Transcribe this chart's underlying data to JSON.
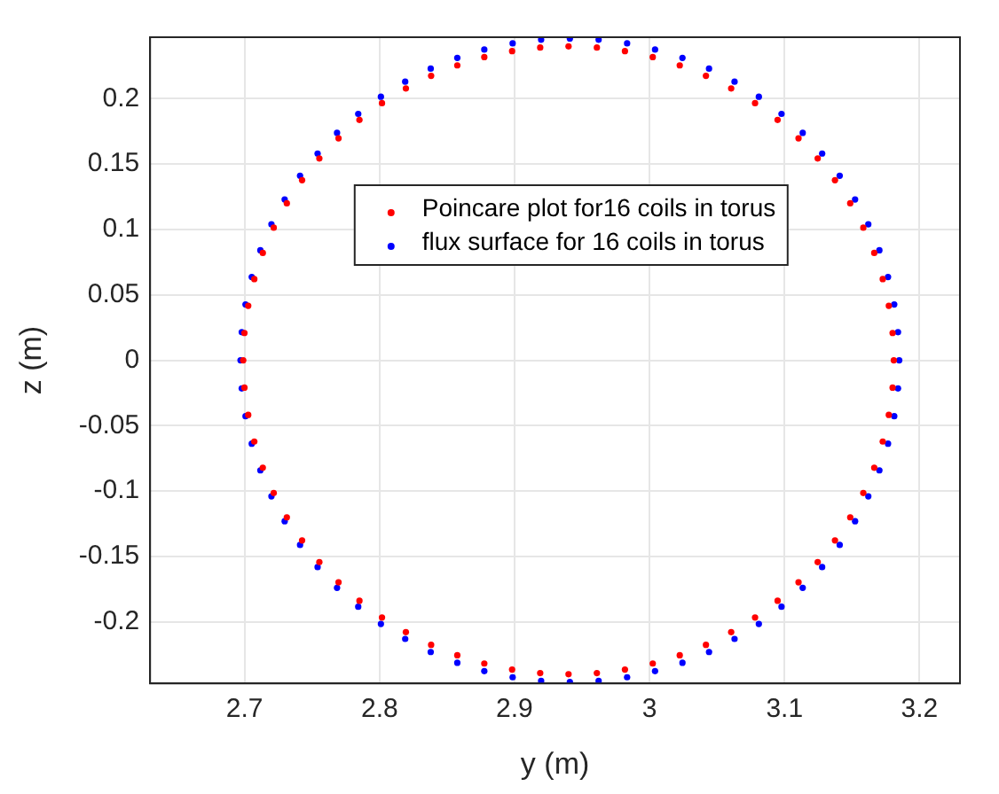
{
  "chart_data": {
    "type": "scatter",
    "xlabel": "y (m)",
    "ylabel": "z (m)",
    "xlim": [
      2.63,
      3.23
    ],
    "xticks": [
      2.7,
      2.8,
      2.9,
      3,
      3.1,
      3.2
    ],
    "ylim": [
      -0.247,
      0.247
    ],
    "yticks": [
      -0.2,
      -0.15,
      -0.1,
      -0.05,
      0,
      0.05,
      0.1,
      0.15,
      0.2
    ],
    "grid": true,
    "legend": "top",
    "series": [
      {
        "name": "Poincare plot for16 coils in torus",
        "type": "scatter",
        "marker": "circle",
        "color": "#ff0000",
        "x": [
          3.181,
          3.1801,
          3.1773,
          3.1728,
          3.1665,
          3.1584,
          3.1487,
          3.1374,
          3.1246,
          3.1104,
          3.0949,
          3.0782,
          3.0605,
          3.0418,
          3.0224,
          3.0024,
          2.9818,
          2.961,
          2.94,
          2.919,
          2.8982,
          2.8776,
          2.8576,
          2.8382,
          2.8195,
          2.8018,
          2.7851,
          2.7696,
          2.7554,
          2.7426,
          2.7313,
          2.7216,
          2.7135,
          2.7072,
          2.7027,
          2.6999,
          2.699,
          2.6999,
          2.7027,
          2.7072,
          2.7135,
          2.7216,
          2.7313,
          2.7426,
          2.7554,
          2.7696,
          2.7851,
          2.8018,
          2.8195,
          2.8382,
          2.8576,
          2.8776,
          2.8982,
          2.919,
          2.94,
          2.961,
          2.9818,
          3.0024,
          3.0224,
          3.0418,
          3.0605,
          3.0782,
          3.0949,
          3.1104,
          3.1246,
          3.1374,
          3.1487,
          3.1584,
          3.1665,
          3.1728,
          3.1773,
          3.1801
        ],
        "values": [
          0,
          0.0209,
          0.0417,
          0.0621,
          0.0821,
          0.1014,
          0.12,
          0.1377,
          0.1543,
          0.1697,
          0.1838,
          0.1966,
          0.2078,
          0.2175,
          0.2255,
          0.2318,
          0.2364,
          0.2391,
          0.24,
          0.2391,
          0.2364,
          0.2318,
          0.2255,
          0.2175,
          0.2078,
          0.1966,
          0.1838,
          0.1697,
          0.1543,
          0.1377,
          0.12,
          0.1014,
          0.0821,
          0.0621,
          0.0417,
          0.0209,
          0,
          -0.0209,
          -0.0417,
          -0.0621,
          -0.0821,
          -0.1014,
          -0.12,
          -0.1377,
          -0.1543,
          -0.1697,
          -0.1838,
          -0.1966,
          -0.2078,
          -0.2175,
          -0.2255,
          -0.2318,
          -0.2364,
          -0.2391,
          -0.24,
          -0.2391,
          -0.2364,
          -0.2318,
          -0.2255,
          -0.2175,
          -0.2078,
          -0.1966,
          -0.1838,
          -0.1697,
          -0.1543,
          -0.1377,
          -0.12,
          -0.1014,
          -0.0821,
          -0.0621,
          -0.0417,
          -0.0209
        ]
      },
      {
        "name": "flux surface for 16 coils in torus",
        "type": "scatter",
        "marker": "circle",
        "color": "#0000ff",
        "x": [
          3.185,
          3.1841,
          3.1813,
          3.1767,
          3.1703,
          3.1621,
          3.1523,
          3.1409,
          3.1279,
          3.1135,
          3.0978,
          3.081,
          3.063,
          3.0441,
          3.0244,
          3.0041,
          2.9834,
          2.9623,
          2.941,
          2.9197,
          2.8986,
          2.8776,
          2.8576,
          2.8379,
          2.819,
          2.801,
          2.7842,
          2.7685,
          2.7541,
          2.7411,
          2.7297,
          2.7199,
          2.7117,
          2.7053,
          2.7007,
          2.6979,
          2.697,
          2.6979,
          2.7007,
          2.7053,
          2.7117,
          2.7199,
          2.7297,
          2.7411,
          2.7541,
          2.7685,
          2.7842,
          2.801,
          2.819,
          2.8379,
          2.8576,
          2.8776,
          2.8986,
          2.9197,
          2.941,
          2.9623,
          2.9834,
          3.0041,
          3.0244,
          3.0441,
          3.063,
          3.081,
          3.0978,
          3.1135,
          3.1279,
          3.1409,
          3.1523,
          3.1621,
          3.1703,
          3.1767,
          3.1813,
          3.1841
        ],
        "values": [
          0,
          0.0215,
          0.0427,
          0.0637,
          0.0841,
          0.104,
          0.123,
          0.1411,
          0.1581,
          0.1739,
          0.1884,
          0.2015,
          0.213,
          0.223,
          0.2312,
          0.2376,
          0.2423,
          0.2451,
          0.246,
          0.2451,
          0.2423,
          0.2376,
          0.2312,
          0.223,
          0.213,
          0.2015,
          0.1884,
          0.1739,
          0.1581,
          0.1411,
          0.123,
          0.104,
          0.0841,
          0.0637,
          0.0427,
          0.0215,
          0,
          -0.0215,
          -0.0427,
          -0.0637,
          -0.0841,
          -0.104,
          -0.123,
          -0.1411,
          -0.1581,
          -0.1739,
          -0.1884,
          -0.2015,
          -0.213,
          -0.223,
          -0.2312,
          -0.2376,
          -0.2423,
          -0.2451,
          -0.246,
          -0.2451,
          -0.2423,
          -0.2376,
          -0.2312,
          -0.223,
          -0.213,
          -0.2015,
          -0.1884,
          -0.1739,
          -0.1581,
          -0.1411,
          -0.123,
          -0.104,
          -0.0841,
          -0.0637,
          -0.0427,
          -0.0215
        ]
      }
    ]
  }
}
